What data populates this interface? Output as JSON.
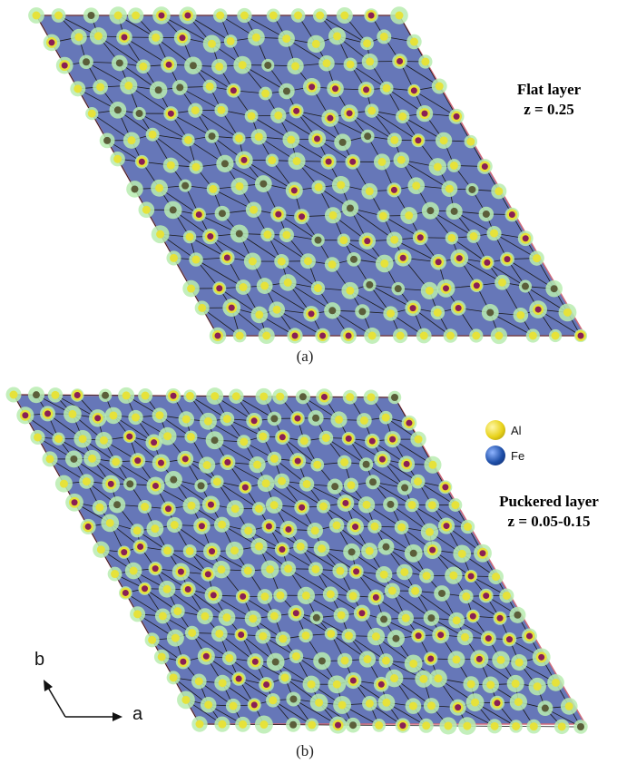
{
  "panel_a": {
    "title_line1": "Flat layer",
    "title_line2": "z = 0.25",
    "caption": "(a)"
  },
  "panel_b": {
    "title_line1": "Puckered layer",
    "title_line2": "z = 0.05-0.15",
    "caption": "(b)"
  },
  "legend": {
    "items": [
      {
        "label": "Al",
        "color": "#e8d21a"
      },
      {
        "label": "Fe",
        "color": "#1e4fa8"
      }
    ]
  },
  "axes": {
    "a_label": "a",
    "b_label": "b"
  },
  "colors": {
    "background": "#6677b8",
    "cell_border": "#d06a7a",
    "bond": "#1a1a1a",
    "atom_core_dark": "#8a1f55",
    "atom_yellow": "#e6e23a",
    "atom_halo": "#b8ecb0",
    "node_dark": "#5b5e3a"
  }
}
